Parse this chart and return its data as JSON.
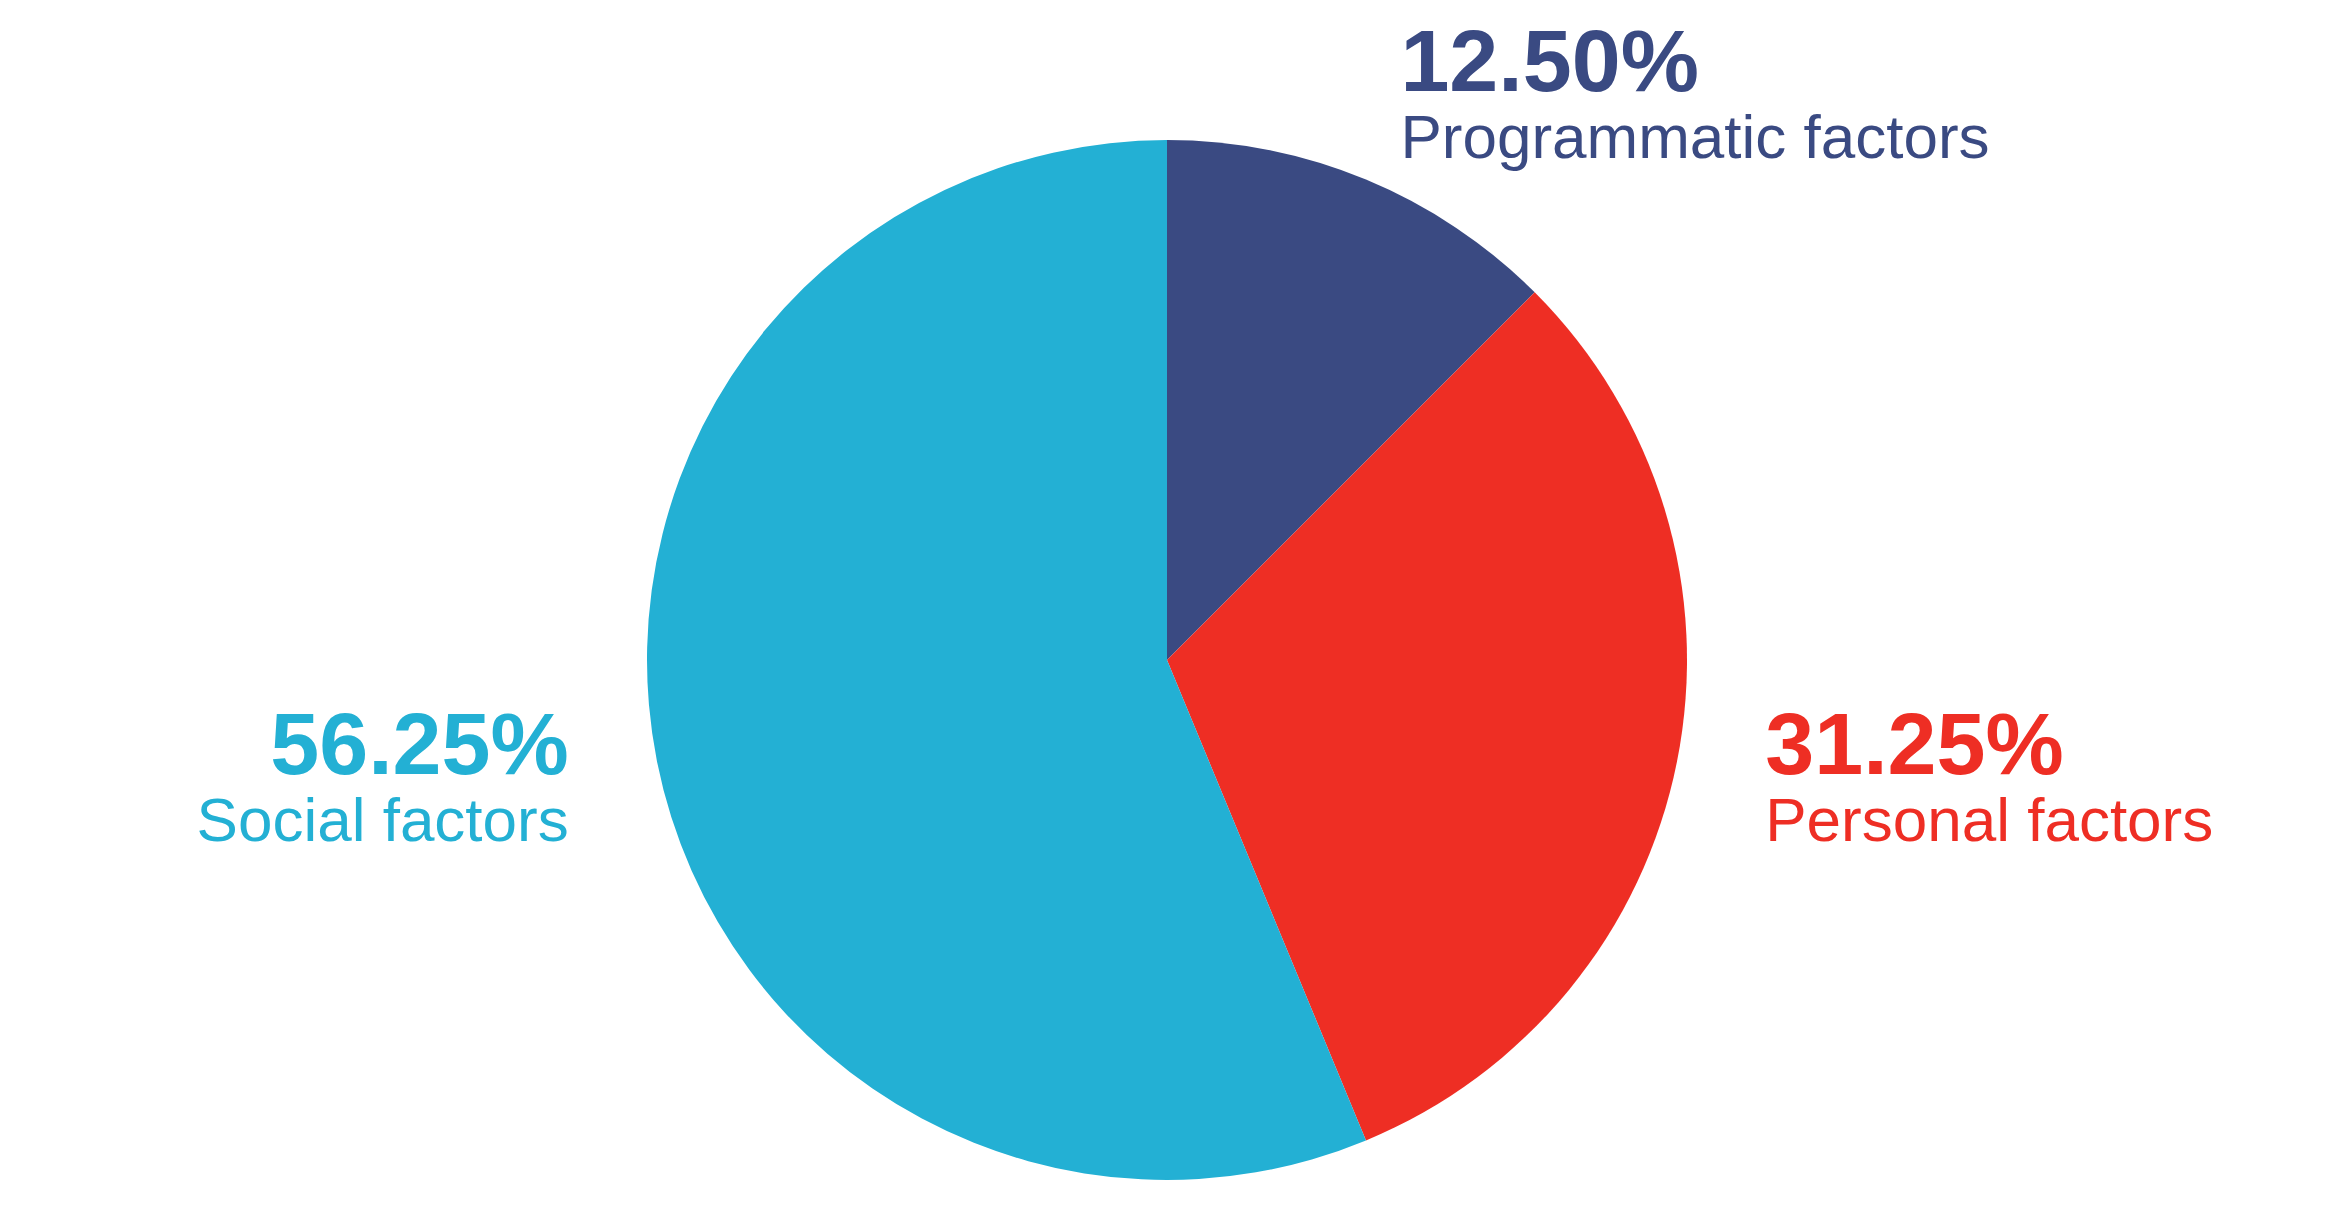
{
  "chart_data": {
    "type": "pie",
    "categories": [
      "Programmatic factors",
      "Personal factors",
      "Social factors"
    ],
    "values": [
      12.5,
      31.25,
      56.25
    ],
    "value_labels": [
      "12.50%",
      "31.25%",
      "56.25%"
    ],
    "colors": [
      "#3a4a82",
      "#ee2e24",
      "#23b0d4"
    ]
  }
}
